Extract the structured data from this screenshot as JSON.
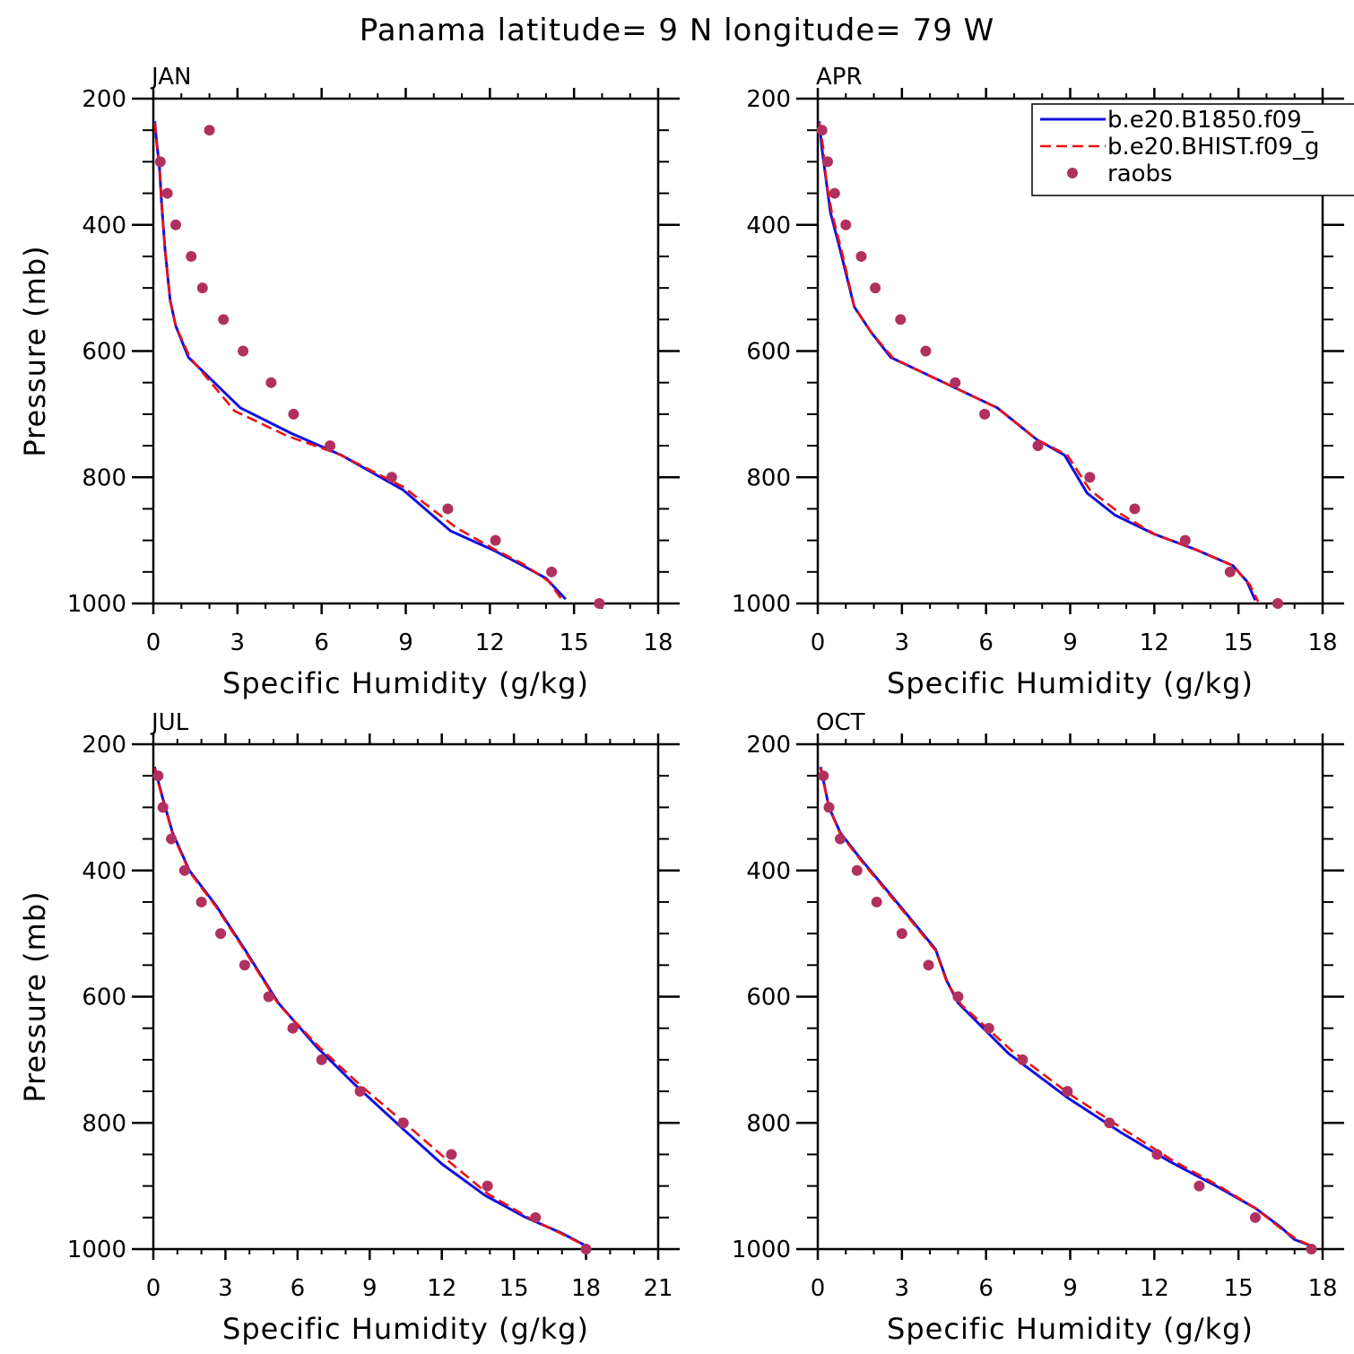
{
  "title": "Panama  latitude= 9 N longitude= 79 W",
  "legend": {
    "placement": "top-right of APR panel",
    "entries": [
      {
        "label": "b.e20.B1850.f09_",
        "style": "solid",
        "color": "#0000ff"
      },
      {
        "label": "b.e20.BHIST.f09_g",
        "style": "dashed",
        "color": "#ff0000"
      },
      {
        "label": "raobs",
        "style": "marker",
        "color": "#b03060"
      }
    ]
  },
  "colors": {
    "model1": "#1010e0",
    "model2": "#ee1111",
    "raobs": "#b03060",
    "axes": "#000000"
  },
  "chart_data": [
    {
      "type": "line",
      "panel": "JAN",
      "xlabel": "Specific Humidity (g/kg)",
      "ylabel": "Pressure (mb)",
      "xlim": [
        0,
        18
      ],
      "ylim": [
        1000,
        200
      ],
      "xticks": [
        0,
        3,
        6,
        9,
        12,
        15,
        18
      ],
      "yticks": [
        200,
        400,
        600,
        800,
        1000
      ],
      "y_inverted": true,
      "series": [
        {
          "name": "b.e20.B1850.f09_",
          "x": [
            0.05,
            0.12,
            0.22,
            0.3,
            0.42,
            0.6,
            0.8,
            1.25,
            3.1,
            4.9,
            6.7,
            8.9,
            10.6,
            12.1,
            13.1,
            14.0,
            14.7
          ],
          "y": [
            236,
            270,
            310,
            370,
            440,
            520,
            560,
            610,
            690,
            730,
            765,
            820,
            885,
            915,
            938,
            960,
            993
          ]
        },
        {
          "name": "b.e20.BHIST.f09_g",
          "x": [
            0.05,
            0.12,
            0.22,
            0.3,
            0.42,
            0.6,
            0.8,
            1.3,
            2.9,
            4.8,
            6.6,
            8.9,
            10.8,
            12.2,
            13.2,
            14.1,
            14.6
          ],
          "y": [
            238,
            272,
            310,
            370,
            440,
            520,
            560,
            610,
            695,
            735,
            763,
            815,
            880,
            915,
            938,
            965,
            996
          ]
        },
        {
          "name": "raobs",
          "x": [
            2.0,
            0.25,
            0.5,
            0.8,
            1.35,
            1.75,
            2.5,
            3.2,
            4.2,
            5.0,
            6.3,
            8.5,
            10.5,
            12.2,
            14.2,
            15.9
          ],
          "y": [
            250,
            300,
            350,
            400,
            450,
            500,
            550,
            600,
            650,
            700,
            750,
            800,
            850,
            900,
            950,
            1000
          ]
        }
      ]
    },
    {
      "type": "line",
      "panel": "APR",
      "xlabel": "Specific Humidity (g/kg)",
      "ylabel": "",
      "xlim": [
        0,
        18
      ],
      "ylim": [
        1000,
        200
      ],
      "xticks": [
        0,
        3,
        6,
        9,
        12,
        15,
        18
      ],
      "yticks": [
        200,
        400,
        600,
        800,
        1000
      ],
      "y_inverted": true,
      "series": [
        {
          "name": "b.e20.B1850.f09_",
          "x": [
            0.05,
            0.15,
            0.3,
            0.45,
            0.8,
            1.3,
            1.9,
            2.6,
            4.5,
            6.4,
            7.8,
            8.8,
            9.6,
            10.6,
            12.0,
            13.5,
            14.8,
            15.3,
            15.6
          ],
          "y": [
            236,
            280,
            330,
            380,
            440,
            530,
            570,
            610,
            650,
            690,
            740,
            765,
            825,
            860,
            890,
            915,
            940,
            965,
            995
          ]
        },
        {
          "name": "b.e20.BHIST.f09_g",
          "x": [
            0.05,
            0.2,
            0.3,
            0.5,
            0.9,
            1.3,
            1.9,
            2.7,
            4.5,
            6.4,
            7.8,
            8.9,
            9.7,
            10.8,
            12.0,
            13.5,
            14.8,
            15.4,
            15.7
          ],
          "y": [
            238,
            280,
            330,
            380,
            450,
            530,
            570,
            612,
            650,
            690,
            740,
            765,
            820,
            858,
            890,
            915,
            940,
            970,
            997
          ]
        },
        {
          "name": "raobs",
          "x": [
            0.15,
            0.35,
            0.6,
            1.0,
            1.55,
            2.05,
            2.95,
            3.85,
            4.9,
            5.95,
            7.85,
            9.7,
            11.3,
            13.1,
            14.7,
            16.4
          ],
          "y": [
            250,
            300,
            350,
            400,
            450,
            500,
            550,
            600,
            650,
            700,
            750,
            800,
            850,
            900,
            950,
            1000
          ]
        }
      ]
    },
    {
      "type": "line",
      "panel": "JUL",
      "xlabel": "Specific Humidity (g/kg)",
      "ylabel": "Pressure (mb)",
      "xlim": [
        0,
        21
      ],
      "ylim": [
        1000,
        200
      ],
      "xticks": [
        0,
        3,
        6,
        9,
        12,
        15,
        18,
        21
      ],
      "yticks": [
        200,
        400,
        600,
        800,
        1000
      ],
      "y_inverted": true,
      "series": [
        {
          "name": "b.e20.B1850.f09_",
          "x": [
            0.05,
            0.35,
            0.8,
            1.5,
            2.6,
            3.8,
            5.2,
            6.8,
            8.4,
            10.4,
            12.0,
            13.8,
            15.5,
            17.0,
            18.0
          ],
          "y": [
            236,
            280,
            340,
            400,
            455,
            525,
            610,
            680,
            740,
            810,
            865,
            915,
            950,
            975,
            995
          ]
        },
        {
          "name": "b.e20.BHIST.f09_g",
          "x": [
            0.05,
            0.35,
            0.8,
            1.5,
            2.6,
            3.8,
            5.2,
            6.9,
            8.6,
            10.6,
            12.2,
            13.9,
            15.6,
            17.1,
            18.1
          ],
          "y": [
            238,
            282,
            342,
            402,
            457,
            527,
            612,
            680,
            740,
            805,
            858,
            912,
            950,
            978,
            997
          ]
        },
        {
          "name": "raobs",
          "x": [
            0.2,
            0.4,
            0.75,
            1.3,
            2.0,
            2.8,
            3.8,
            4.8,
            5.8,
            7.0,
            8.6,
            10.4,
            12.4,
            13.9,
            15.9,
            18.0
          ],
          "y": [
            250,
            300,
            350,
            400,
            450,
            500,
            550,
            600,
            650,
            700,
            750,
            800,
            850,
            900,
            950,
            1000
          ]
        }
      ]
    },
    {
      "type": "line",
      "panel": "OCT",
      "xlabel": "Specific Humidity (g/kg)",
      "ylabel": "",
      "xlim": [
        0,
        18
      ],
      "ylim": [
        1000,
        200
      ],
      "xticks": [
        0,
        3,
        6,
        9,
        12,
        15,
        18
      ],
      "yticks": [
        200,
        400,
        600,
        800,
        1000
      ],
      "y_inverted": true,
      "series": [
        {
          "name": "b.e20.B1850.f09_",
          "x": [
            0.1,
            0.4,
            0.8,
            1.5,
            3.0,
            4.2,
            4.6,
            5.0,
            6.8,
            8.9,
            10.8,
            12.5,
            14.2,
            15.6,
            16.5,
            17.0,
            17.6
          ],
          "y": [
            236,
            300,
            340,
            380,
            460,
            525,
            575,
            610,
            690,
            760,
            815,
            860,
            900,
            935,
            965,
            985,
            995
          ]
        },
        {
          "name": "b.e20.BHIST.f09_g",
          "x": [
            0.1,
            0.4,
            0.8,
            1.5,
            3.0,
            4.2,
            4.6,
            5.1,
            6.9,
            9.0,
            10.9,
            12.6,
            14.3,
            15.6,
            16.5,
            17.1,
            17.7
          ],
          "y": [
            238,
            300,
            342,
            382,
            462,
            527,
            577,
            612,
            685,
            755,
            810,
            858,
            900,
            935,
            967,
            985,
            997
          ]
        },
        {
          "name": "raobs",
          "x": [
            0.2,
            0.4,
            0.8,
            1.4,
            2.1,
            3.0,
            3.95,
            5.0,
            6.1,
            7.3,
            8.9,
            10.4,
            12.1,
            13.6,
            15.6,
            17.6
          ],
          "y": [
            250,
            300,
            350,
            400,
            450,
            500,
            550,
            600,
            650,
            700,
            750,
            800,
            850,
            900,
            950,
            1000
          ]
        }
      ]
    }
  ]
}
